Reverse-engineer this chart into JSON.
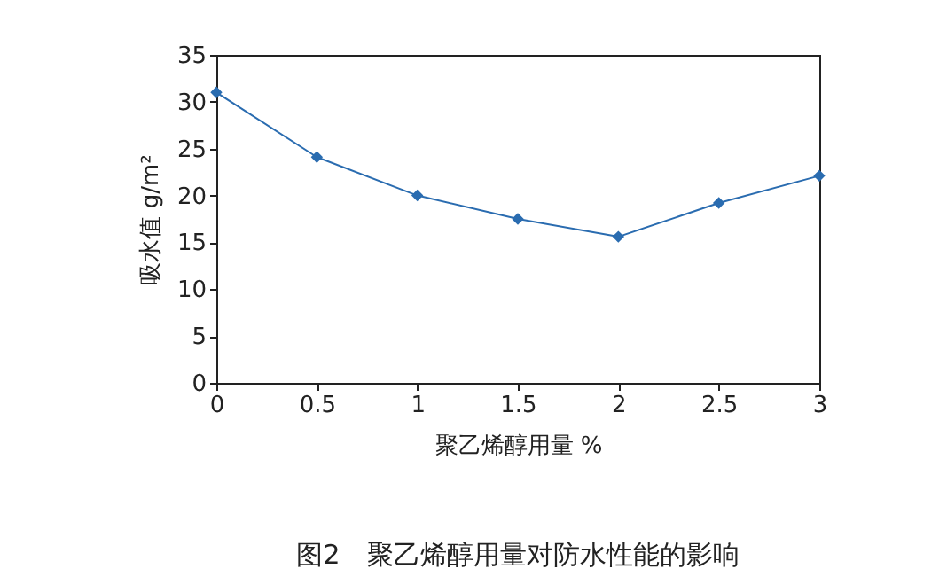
{
  "chart_data": {
    "type": "line",
    "title": "图2　聚乙烯醇用量对防水性能的影响",
    "xlabel": "聚乙烯醇用量 %",
    "ylabel": "吸水值 g/m²",
    "x": [
      0,
      0.5,
      1,
      1.5,
      2,
      2.5,
      3
    ],
    "series": [
      {
        "color": "#2a6cb0",
        "values": [
          31.0,
          24.1,
          20.0,
          17.5,
          15.6,
          19.2,
          22.1
        ]
      }
    ],
    "xlim": [
      0,
      3
    ],
    "xticks": [
      0,
      0.5,
      1,
      1.5,
      2,
      2.5,
      3
    ],
    "ylim": [
      0,
      35
    ],
    "yticks": [
      0,
      5,
      10,
      15,
      20,
      25,
      30,
      35
    ],
    "grid": false,
    "marker": "diamond",
    "line_style": "solid"
  }
}
